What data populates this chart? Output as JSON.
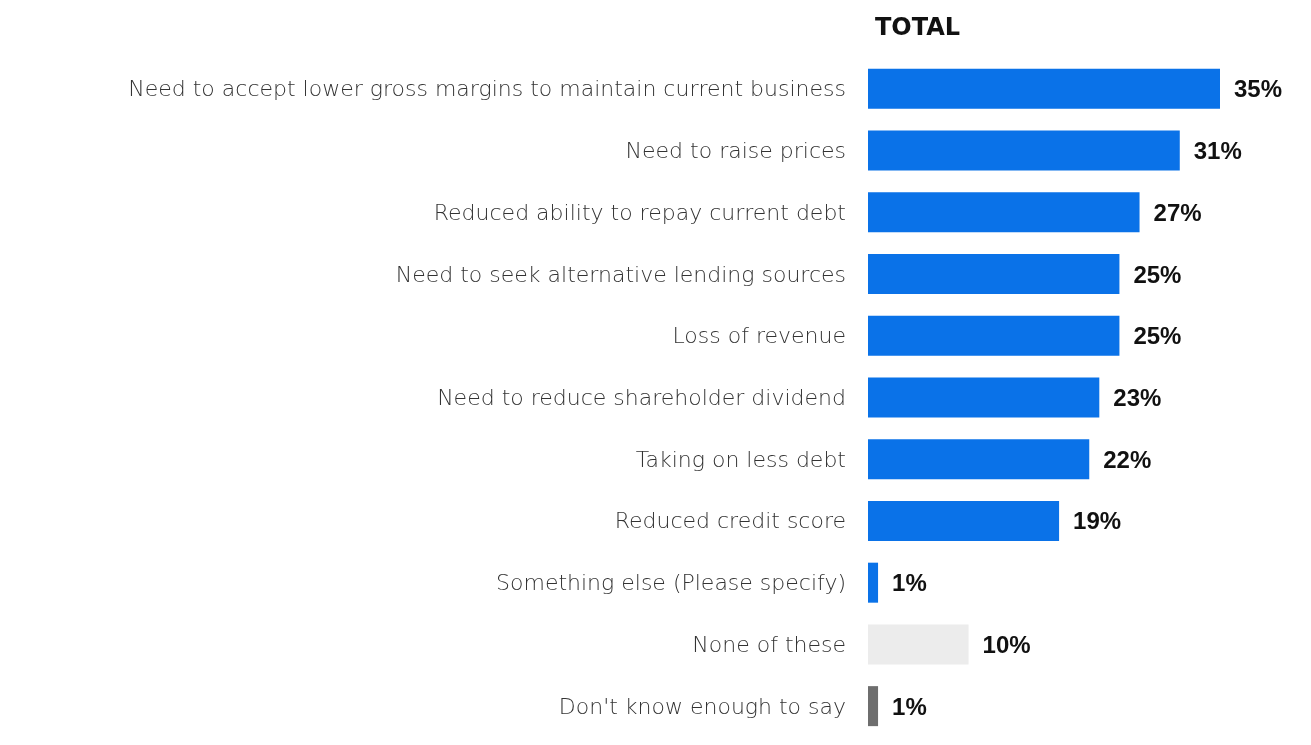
{
  "chart_data": {
    "type": "bar",
    "title": "TOTAL",
    "categories": [
      "Need to accept lower gross margins to maintain current business",
      "Need to raise prices",
      "Reduced ability to repay current debt",
      "Need to seek alternative lending sources",
      "Loss of revenue",
      "Need to reduce shareholder dividend",
      "Taking on less debt",
      "Reduced credit score",
      "Something else (Please specify)",
      "None of these",
      "Don't know enough to say"
    ],
    "values": [
      35,
      31,
      27,
      25,
      25,
      23,
      22,
      19,
      1,
      10,
      1
    ],
    "value_labels": [
      "35%",
      "31%",
      "27%",
      "25%",
      "25%",
      "23%",
      "22%",
      "19%",
      "1%",
      "10%",
      "1%"
    ],
    "colors": [
      "#0a72e8",
      "#0a72e8",
      "#0a72e8",
      "#0a72e8",
      "#0a72e8",
      "#0a72e8",
      "#0a72e8",
      "#0a72e8",
      "#0a72e8",
      "#ececec",
      "#6e6e6e"
    ],
    "orientation": "horizontal"
  }
}
